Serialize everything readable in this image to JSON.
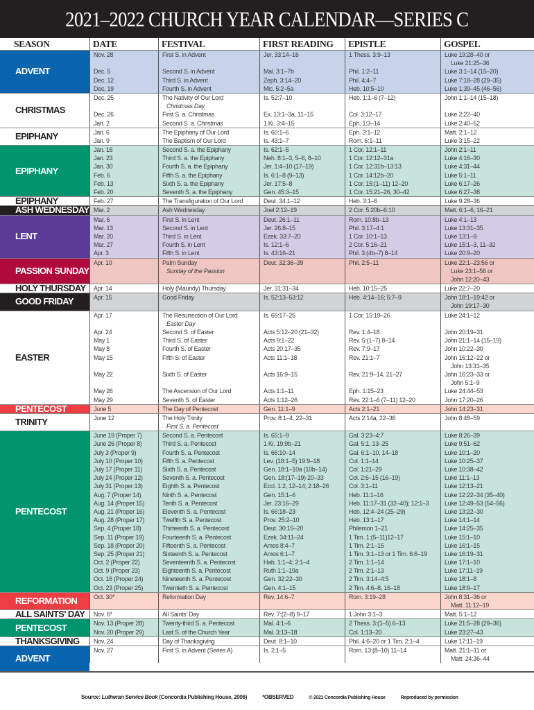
{
  "title": "2021–2022 CHURCH YEAR CALENDAR—SERIES C",
  "columns": [
    "SEASON",
    "DATE",
    "FESTIVAL",
    "FIRST READING",
    "EPISTLE",
    "GOSPEL"
  ],
  "colors": {
    "advent": "#0a63ad",
    "advent_light": "#c7d3eb",
    "green": "#00956f",
    "green_light": "#c6e3dc",
    "lent": "#5a3b97",
    "lent_light": "#d3cce6",
    "passion": "#b0093b",
    "passion_light": "#efc6c2",
    "red": "#ee3e43",
    "red_light": "#fbd6cd",
    "black": "#231f20",
    "gray": "#d1d3d4",
    "white": "#ffffff"
  },
  "sections": [
    {
      "season": "ADVENT",
      "cell": "advent",
      "bg": "advent_light",
      "rows": [
        {
          "date": "Nov. 28",
          "festival": "First S. in Advent",
          "first": "Jer. 33:14–16",
          "epistle": "1 Thess. 3:9–13",
          "gospel": [
            "Luke 19:28–40 or",
            "Luke 21:25–36"
          ]
        },
        {
          "date": "Dec. 5",
          "festival": "Second S. in Advent",
          "first": "Mal. 3:1–7b",
          "epistle": "Phil. 1:2–11",
          "gospel": [
            "Luke 3:1–14 (15–20)"
          ]
        },
        {
          "date": "Dec. 12",
          "festival": "Third S. in Advent",
          "first": "Zeph. 3:14–20",
          "epistle": "Phil. 4:4–7",
          "gospel": [
            "Luke 7:18–28 (29–35)"
          ]
        },
        {
          "date": "Dec. 19",
          "festival": "Fourth S. in Advent",
          "first": "Mic. 5:2–5a",
          "epistle": "Heb. 10:5–10",
          "gospel": [
            "Luke 1:39–45 (46–56)"
          ]
        }
      ]
    },
    {
      "season": "CHRISTMAS",
      "cell": "white",
      "bg": "white",
      "rows": [
        {
          "date": "Dec. 25",
          "festival": "The Nativity of Our Lord",
          "note": "Christmas Day",
          "first": "Is. 52:7–10",
          "epistle": "Heb. 1:1–6 (7–12)",
          "gospel": [
            "John 1:1–14 (15–18)"
          ]
        },
        {
          "date": "Dec. 26",
          "festival": "First S. a. Christmas",
          "first": "Ex. 13:1–3a, 11–15",
          "epistle": "Col. 3:12–17",
          "gospel": [
            "Luke 2:22–40"
          ]
        },
        {
          "date": "Jan. 2",
          "festival": "Second S. a. Christmas",
          "first": "1 Ki. 3:4–15",
          "epistle": "Eph. 1:3–14",
          "gospel": [
            "Luke 2:40–52"
          ]
        }
      ]
    },
    {
      "season": "EPIPHANY",
      "cell": "white",
      "bg": "white",
      "rows": [
        {
          "date": "Jan. 6",
          "festival": "The Epiphany of Our Lord",
          "first": "Is. 60:1–6",
          "epistle": "Eph. 3:1–12",
          "gospel": [
            "Matt. 2:1–12"
          ]
        },
        {
          "date": "Jan. 9",
          "festival": "The Baptism of Our Lord",
          "first": "Is. 43:1–7",
          "epistle": "Rom. 6:1–11",
          "gospel": [
            "Luke 3:15–22"
          ]
        }
      ]
    },
    {
      "season": "EPIPHANY",
      "cell": "green",
      "bg": "green_light",
      "rows": [
        {
          "date": "Jan. 16",
          "festival": "Second S. a. the Epiphany",
          "first": "Is. 62:1–5",
          "epistle": "1 Cor. 12:1–11",
          "gospel": [
            "John 2:1–11"
          ]
        },
        {
          "date": "Jan. 23",
          "festival": "Third S. a. the Epiphany",
          "first": "Neh. 8:1–3, 5–6, 8–10",
          "epistle": "1 Cor. 12:12–31a",
          "gospel": [
            "Luke 4:16–30"
          ]
        },
        {
          "date": "Jan. 30",
          "festival": "Fourth S. a. the Epiphany",
          "first": "Jer. 1:4–10 (17–19)",
          "epistle": "1 Cor. 12:31b–13:13",
          "gospel": [
            "Luke 4:31–44"
          ]
        },
        {
          "date": "Feb. 6",
          "festival": "Fifth S. a. the Epiphany",
          "first": "Is. 6:1–8 (9–13)",
          "epistle": "1 Cor. 14:12b–20",
          "gospel": [
            "Luke 5:1–11"
          ]
        },
        {
          "date": "Feb. 13",
          "festival": "Sixth S. a. the Epiphany",
          "first": "Jer. 17:5–8",
          "epistle": "1 Cor. 15:(1–11) 12–20",
          "gospel": [
            "Luke 6:17–26"
          ]
        },
        {
          "date": "Feb. 20",
          "festival": "Seventh S. a. the Epiphany",
          "first": "Gen. 45:3–15",
          "epistle": "1 Cor. 15:21–26, 30–42",
          "gospel": [
            "Luke 6:27–38"
          ]
        }
      ]
    },
    {
      "season": "EPIPHANY",
      "cell": "white",
      "bg": "white",
      "rows": [
        {
          "date": "Feb. 27",
          "festival": "The Transfiguration of Our Lord",
          "first": "Deut. 34:1–12",
          "epistle": "Heb. 3:1–6",
          "gospel": [
            "Luke 9:28–36"
          ]
        }
      ]
    },
    {
      "season": "ASH WEDNESDAY",
      "cell": "black",
      "bg": "gray",
      "rows": [
        {
          "date": "Mar. 2",
          "festival": "Ash Wednesday",
          "first": "Joel 2:12–19",
          "epistle": "2 Cor. 5:20b–6:10",
          "gospel": [
            "Matt. 6:1–6, 16–21"
          ]
        }
      ]
    },
    {
      "season": "LENT",
      "cell": "lent",
      "bg": "lent_light",
      "rows": [
        {
          "date": "Mar. 6",
          "festival": "First S. in Lent",
          "first": "Deut. 26:1–11",
          "epistle": "Rom. 10:8b–13",
          "gospel": [
            "Luke 4:1–13"
          ]
        },
        {
          "date": "Mar. 13",
          "festival": "Second S. in Lent",
          "first": "Jer. 26:8–15",
          "epistle": "Phil. 3:17–4:1",
          "gospel": [
            "Luke 13:31–35"
          ]
        },
        {
          "date": "Mar. 20",
          "festival": "Third S. in Lent",
          "first": "Ezek. 33:7–20",
          "epistle": "1 Cor. 10:1–13",
          "gospel": [
            "Luke 13:1–9"
          ]
        },
        {
          "date": "Mar. 27",
          "festival": "Fourth S. in Lent",
          "first": "Is. 12:1–6",
          "epistle": "2 Cor. 5:16–21",
          "gospel": [
            "Luke 15:1–3, 11–32"
          ]
        },
        {
          "date": "Apr. 3",
          "festival": "Fifth S. in Lent",
          "first": "Is. 43:16–21",
          "epistle": "Phil. 3:(4b–7) 8–14",
          "gospel": [
            "Luke 20:9–20"
          ]
        }
      ]
    },
    {
      "season": "PASSION SUNDAY",
      "cell": "passion",
      "bg": "passion_light",
      "rows": [
        {
          "date": "Apr. 10",
          "festival": "Palm Sunday",
          "note": "Sunday of the Passion",
          "first": "Deut. 32:36–39",
          "epistle": "Phil. 2:5–11",
          "gospel": [
            "Luke 22:1–23:56 or",
            "Luke 23:1–56 or",
            "John 12:20–43"
          ]
        }
      ]
    },
    {
      "season": "HOLY THURSDAY",
      "cell": "white",
      "bg": "white",
      "rows": [
        {
          "date": "Apr. 14",
          "festival": "Holy (Maundy) Thursday",
          "first": "Jer. 31:31–34",
          "epistle": "Heb. 10:15–25",
          "gospel": [
            "Luke 22:7–20"
          ]
        }
      ]
    },
    {
      "season": "GOOD FRIDAY",
      "cell": "black",
      "bg": "gray",
      "rows": [
        {
          "date": "Apr. 15",
          "festival": "Good Friday",
          "first": "Is. 52:13–53:12",
          "epistle": "Heb. 4:14–16; 5:7–9",
          "gospel": [
            "John 18:1–19:42 or",
            "John 19:17–30"
          ]
        }
      ]
    },
    {
      "season": "EASTER",
      "cell": "white",
      "bg": "white",
      "rows": [
        {
          "date": "Apr. 17",
          "festival": "The Resurrection of Our Lord",
          "note": "Easter Day",
          "first": "Is. 65:17–25",
          "epistle": "1 Cor. 15:19–26",
          "gospel": [
            "Luke 24:1–12"
          ]
        },
        {
          "date": "Apr. 24",
          "festival": "Second S. of Easter",
          "first": "Acts 5:12–20 (21–32)",
          "epistle": "Rev. 1:4–18",
          "gospel": [
            "John 20:19–31"
          ]
        },
        {
          "date": "May 1",
          "festival": "Third S. of Easter",
          "first": "Acts 9:1–22",
          "epistle": "Rev. 5:(1–7) 8–14",
          "gospel": [
            "John 21:1–14 (15–19)"
          ]
        },
        {
          "date": "May 8",
          "festival": "Fourth S. of Easter",
          "first": "Acts 20:17–35",
          "epistle": "Rev. 7:9–17",
          "gospel": [
            "John 10:22–30"
          ]
        },
        {
          "date": "May 15",
          "festival": "Fifth S. of Easter",
          "first": "Acts 11:1–18",
          "epistle": "Rev. 21:1–7",
          "gospel": [
            "John 16:12–22 or",
            "John 13:31–35"
          ]
        },
        {
          "date": "May 22",
          "festival": "Sixth S. of Easter",
          "first": "Acts 16:9–15",
          "epistle": "Rev. 21:9–14, 21–27",
          "gospel": [
            "John 16:23–33 or",
            "John 5:1–9"
          ]
        },
        {
          "date": "May 26",
          "festival": "The Ascension of Our Lord",
          "first": "Acts 1:1–11",
          "epistle": "Eph. 1:15–23",
          "gospel": [
            "Luke 24:44–53"
          ]
        },
        {
          "date": "May 29",
          "festival": "Seventh S. of Easter",
          "first": "Acts 1:12–26",
          "epistle": "Rev. 22:1–6 (7–11) 12–20",
          "gospel": [
            "John 17:20–26"
          ]
        }
      ]
    },
    {
      "season": "PENTECOST",
      "cell": "red",
      "bg": "red_light",
      "rows": [
        {
          "date": "June 5",
          "festival": "The Day of Pentecost",
          "first": "Gen. 11:1–9",
          "epistle": "Acts 2:1–21",
          "gospel": [
            "John 14:23–31"
          ]
        }
      ]
    },
    {
      "season": "TRINITY",
      "cell": "white",
      "bg": "white",
      "rows": [
        {
          "date": "June 12",
          "festival": "The Holy Trinity",
          "note": "First S. a. Pentecost",
          "first": "Prov. 8:1–4, 22–31",
          "epistle": "Acts 2:14a, 22–36",
          "gospel": [
            "John 8:48–59"
          ]
        }
      ]
    },
    {
      "season": "PENTECOST",
      "cell": "green",
      "bg": "green_light",
      "rows": [
        {
          "date": "June 19 (Proper 7)",
          "festival": "Second S. a. Pentecost",
          "first": "Is. 65:1–9",
          "epistle": "Gal. 3:23–4:7",
          "gospel": [
            "Luke 8:26–39"
          ]
        },
        {
          "date": "June 26 (Proper 8)",
          "festival": "Third S. a. Pentecost",
          "first": "1 Ki. 19:9b–21",
          "epistle": "Gal. 5:1, 13–25",
          "gospel": [
            "Luke 9:51–62"
          ]
        },
        {
          "date": "July 3 (Proper 9)",
          "festival": "Fourth S. a. Pentecost",
          "first": "Is. 66:10–14",
          "epistle": "Gal. 6:1–10, 14–18",
          "gospel": [
            "Luke 10:1–20"
          ]
        },
        {
          "date": "July 10 (Proper 10)",
          "festival": "Fifth S. a. Pentecost",
          "first": "Lev. (18:1–5) 19:9–18",
          "epistle": "Col. 1:1–14",
          "gospel": [
            "Luke 10:25–37"
          ]
        },
        {
          "date": "July 17 (Proper 11)",
          "festival": "Sixth S. a. Pentecost",
          "first": "Gen. 18:1–10a (10b–14)",
          "epistle": "Col. 1:21–29",
          "gospel": [
            "Luke 10:38–42"
          ]
        },
        {
          "date": "July 24 (Proper 12)",
          "festival": "Seventh S. a. Pentecost",
          "first": "Gen. 18:(17–19) 20–33",
          "epistle": "Col. 2:6–15 (16–19)",
          "gospel": [
            "Luke 11:1–13"
          ]
        },
        {
          "date": "July 31 (Proper 13)",
          "festival": "Eighth S. a. Pentecost",
          "first": "Eccl. 1:2, 12–14; 2:18–26",
          "epistle": "Col. 3:1–11",
          "gospel": [
            "Luke 12:13–21"
          ]
        },
        {
          "date": "Aug. 7 (Proper 14)",
          "festival": "Ninth S. a. Pentecost",
          "first": "Gen. 15:1–6",
          "epistle": "Heb. 11:1–16",
          "gospel": [
            "Luke 12:22–34 (35–40)"
          ]
        },
        {
          "date": "Aug. 14 (Proper 15)",
          "festival": "Tenth S. a. Pentecost",
          "first": "Jer. 23:16–29",
          "epistle": "Heb. 11:17–31 (32–40); 12:1–3",
          "gospel": [
            "Luke 12:49–53 (54–56)"
          ]
        },
        {
          "date": "Aug. 21 (Proper 16)",
          "festival": "Eleventh S. a. Pentecost",
          "first": "Is. 66:18–23",
          "epistle": "Heb. 12:4–24 (25–29)",
          "gospel": [
            "Luke 13:22–30"
          ]
        },
        {
          "date": "Aug. 28 (Proper 17)",
          "festival": "Twelfth S. a. Pentecost",
          "first": "Prov. 25:2–10",
          "epistle": "Heb. 13:1–17",
          "gospel": [
            "Luke 14:1–14"
          ]
        },
        {
          "date": "Sep. 4 (Proper 18)",
          "festival": "Thirteenth S. a. Pentecost",
          "first": "Deut. 30:15–20",
          "epistle": "Philemon 1–21",
          "gospel": [
            "Luke 14:25–35"
          ]
        },
        {
          "date": "Sep. 11 (Proper 19)",
          "festival": "Fourteenth S. a. Pentecost",
          "first": "Ezek. 34:11–24",
          "epistle": "1 Tim. 1:(5–11)12–17",
          "gospel": [
            "Luke 15:1–10"
          ]
        },
        {
          "date": "Sep. 18 (Proper 20)",
          "festival": "Fifteenth S. a. Pentecost",
          "first": "Amos 8:4–7",
          "epistle": "1 Tim. 2:1–15",
          "gospel": [
            "Luke 16:1–15"
          ]
        },
        {
          "date": "Sep. 25 (Proper 21)",
          "festival": "Sixteenth S. a. Pentecost",
          "first": "Amos 6:1–7",
          "epistle": "1 Tim. 3:1–13 or 1 Tim. 6:6–19",
          "gospel": [
            "Luke 16:19–31"
          ]
        },
        {
          "date": "Oct. 2 (Proper 22)",
          "festival": "Seventeenth S. a. Pentecost",
          "first": "Hab. 1:1–4; 2:1–4",
          "epistle": "2 Tim. 1:1–14",
          "gospel": [
            "Luke 17:1–10"
          ]
        },
        {
          "date": "Oct. 9 (Proper 23)",
          "festival": "Eighteenth S. a. Pentecost",
          "first": "Ruth 1:1–19a",
          "epistle": "2 Tim. 2:1–13",
          "gospel": [
            "Luke 17:11–19"
          ]
        },
        {
          "date": "Oct. 16 (Proper 24)",
          "festival": "Nineteenth S. a. Pentecost",
          "first": "Gen. 32:22–30",
          "epistle": "2 Tim. 3:14–4:5",
          "gospel": [
            "Luke 18:1–8"
          ]
        },
        {
          "date": "Oct. 23 (Proper 25)",
          "festival": "Twentieth S. a. Pentecost",
          "first": "Gen. 4:1–15",
          "epistle": "2 Tim. 4:6–8, 16–18",
          "gospel": [
            "Luke 18:9–17"
          ]
        }
      ]
    },
    {
      "season": "REFORMATION",
      "cell": "red",
      "bg": "red_light",
      "rows": [
        {
          "date": "Oct. 30*",
          "festival": "Reformation Day",
          "first": "Rev. 14:6–7",
          "epistle": "Rom. 3:19–28",
          "gospel": [
            "John 8:31–36 or",
            "Matt. 11:12–19"
          ]
        }
      ]
    },
    {
      "season": "ALL SAINTS' DAY",
      "cell": "white",
      "bg": "white",
      "rows": [
        {
          "date": "Nov. 6*",
          "festival": "All Saints' Day",
          "first": "Rev. 7:(2–8) 9–17",
          "epistle": "1 John 3:1–3",
          "gospel": [
            "Matt. 5:1–12"
          ]
        }
      ]
    },
    {
      "season": "PENTECOST",
      "cell": "green",
      "bg": "green_light",
      "rows": [
        {
          "date": "Nov. 13 (Proper 28)",
          "festival": "Twenty-third S. a. Pentecost",
          "first": "Mal. 4:1–6",
          "epistle": "2 Thess. 3:(1–5) 6–13",
          "gospel": [
            "Luke 21:5–28 (29–36)"
          ]
        },
        {
          "date": "Nov. 20 (Proper 29)",
          "festival": "Last S. of the Church Year",
          "first": "Mal. 3:13–18",
          "epistle": "Col. 1:13–20",
          "gospel": [
            "Luke 23:27–43"
          ]
        }
      ]
    },
    {
      "season": "THANKSGIVING",
      "cell": "white",
      "bg": "white",
      "rows": [
        {
          "date": "Nov. 24",
          "festival": "Day of Thanksgiving",
          "first": "Deut. 8:1–10",
          "epistle": "Phil. 4:6–20 or 1 Tim. 2:1–4",
          "gospel": [
            "Luke 17:11–19"
          ]
        }
      ]
    },
    {
      "season": "ADVENT",
      "cell": "advent",
      "bg": "white",
      "rows": [
        {
          "date": "Nov. 27",
          "festival": "First S. in Advent (Series A)",
          "first": "Is. 2:1–5",
          "epistle": "Rom. 13:(8–10) 11–14",
          "gospel": [
            "Matt. 21:1–11 or",
            "Matt. 24:36–44"
          ]
        }
      ]
    }
  ],
  "footer": {
    "source_prefix": "Source: ",
    "source_title": "Lutheran Service Book",
    "source_suffix": " (Concordia Publishing House, 2006)",
    "observed": "*OBSERVED",
    "copyright": "© 2021 Concordia Publishing House",
    "permission": "Reproduced by permission"
  }
}
